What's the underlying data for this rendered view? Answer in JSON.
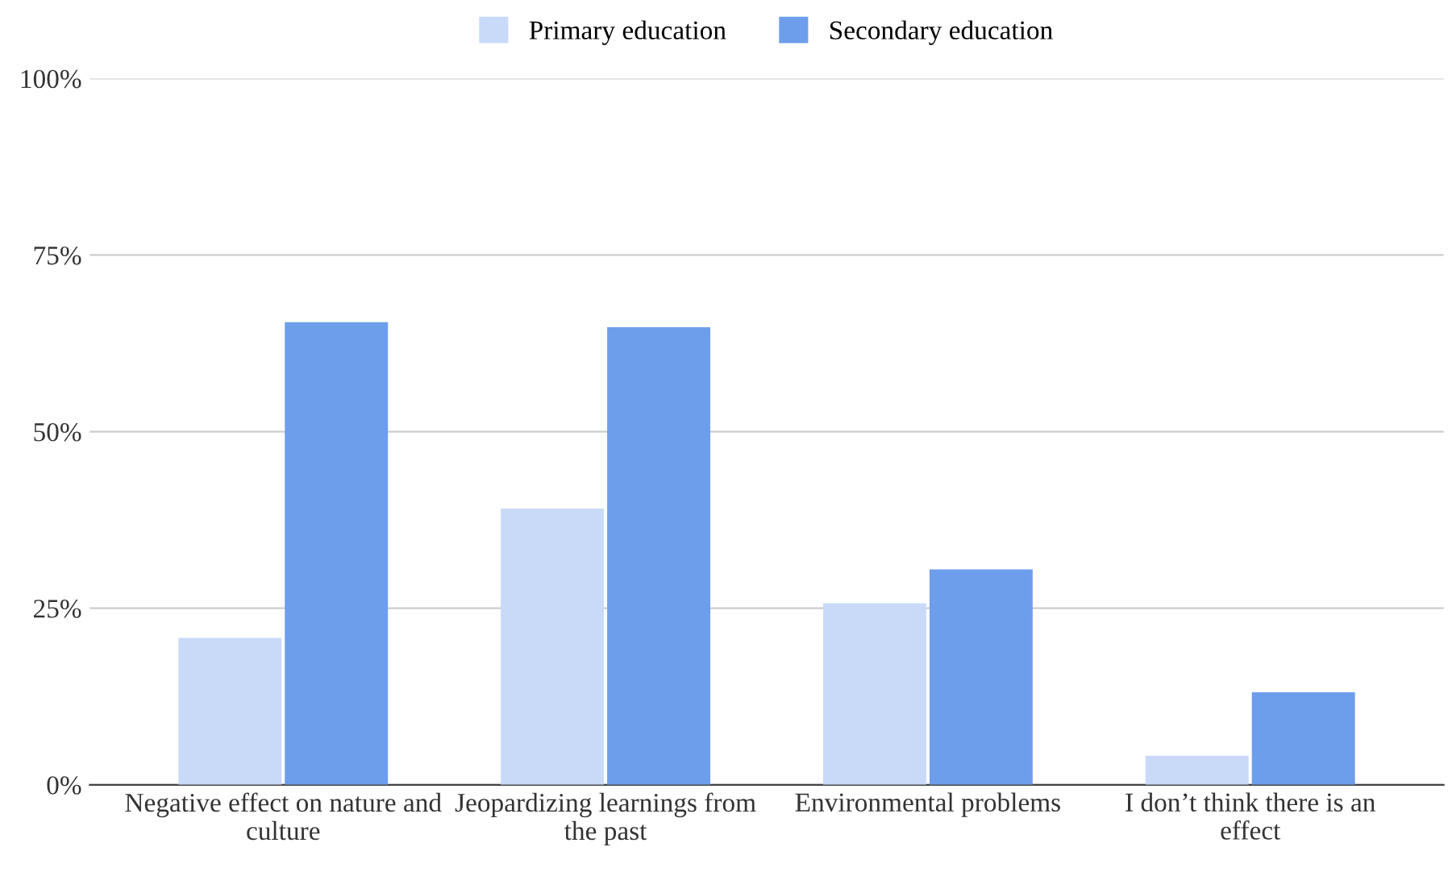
{
  "chart_data": {
    "type": "bar",
    "categories": [
      "Negative effect on nature and culture",
      "Jeopardizing learnings from the past",
      "Environmental problems",
      "I don’t think there is an effect"
    ],
    "series": [
      {
        "name": "Primary education",
        "color": "#c9daf8",
        "values": [
          20.8,
          39.1,
          25.7,
          4.1
        ]
      },
      {
        "name": "Secondary education",
        "color": "#6d9eeb",
        "values": [
          65.5,
          64.8,
          30.5,
          13.1
        ]
      }
    ],
    "ylim": [
      0,
      100
    ],
    "yticks": [
      {
        "value": 0,
        "label": "0%"
      },
      {
        "value": 25,
        "label": "25%"
      },
      {
        "value": 50,
        "label": "50%"
      },
      {
        "value": 75,
        "label": "75%"
      },
      {
        "value": 100,
        "label": "100%"
      }
    ],
    "grid": "y",
    "legend": "top"
  }
}
